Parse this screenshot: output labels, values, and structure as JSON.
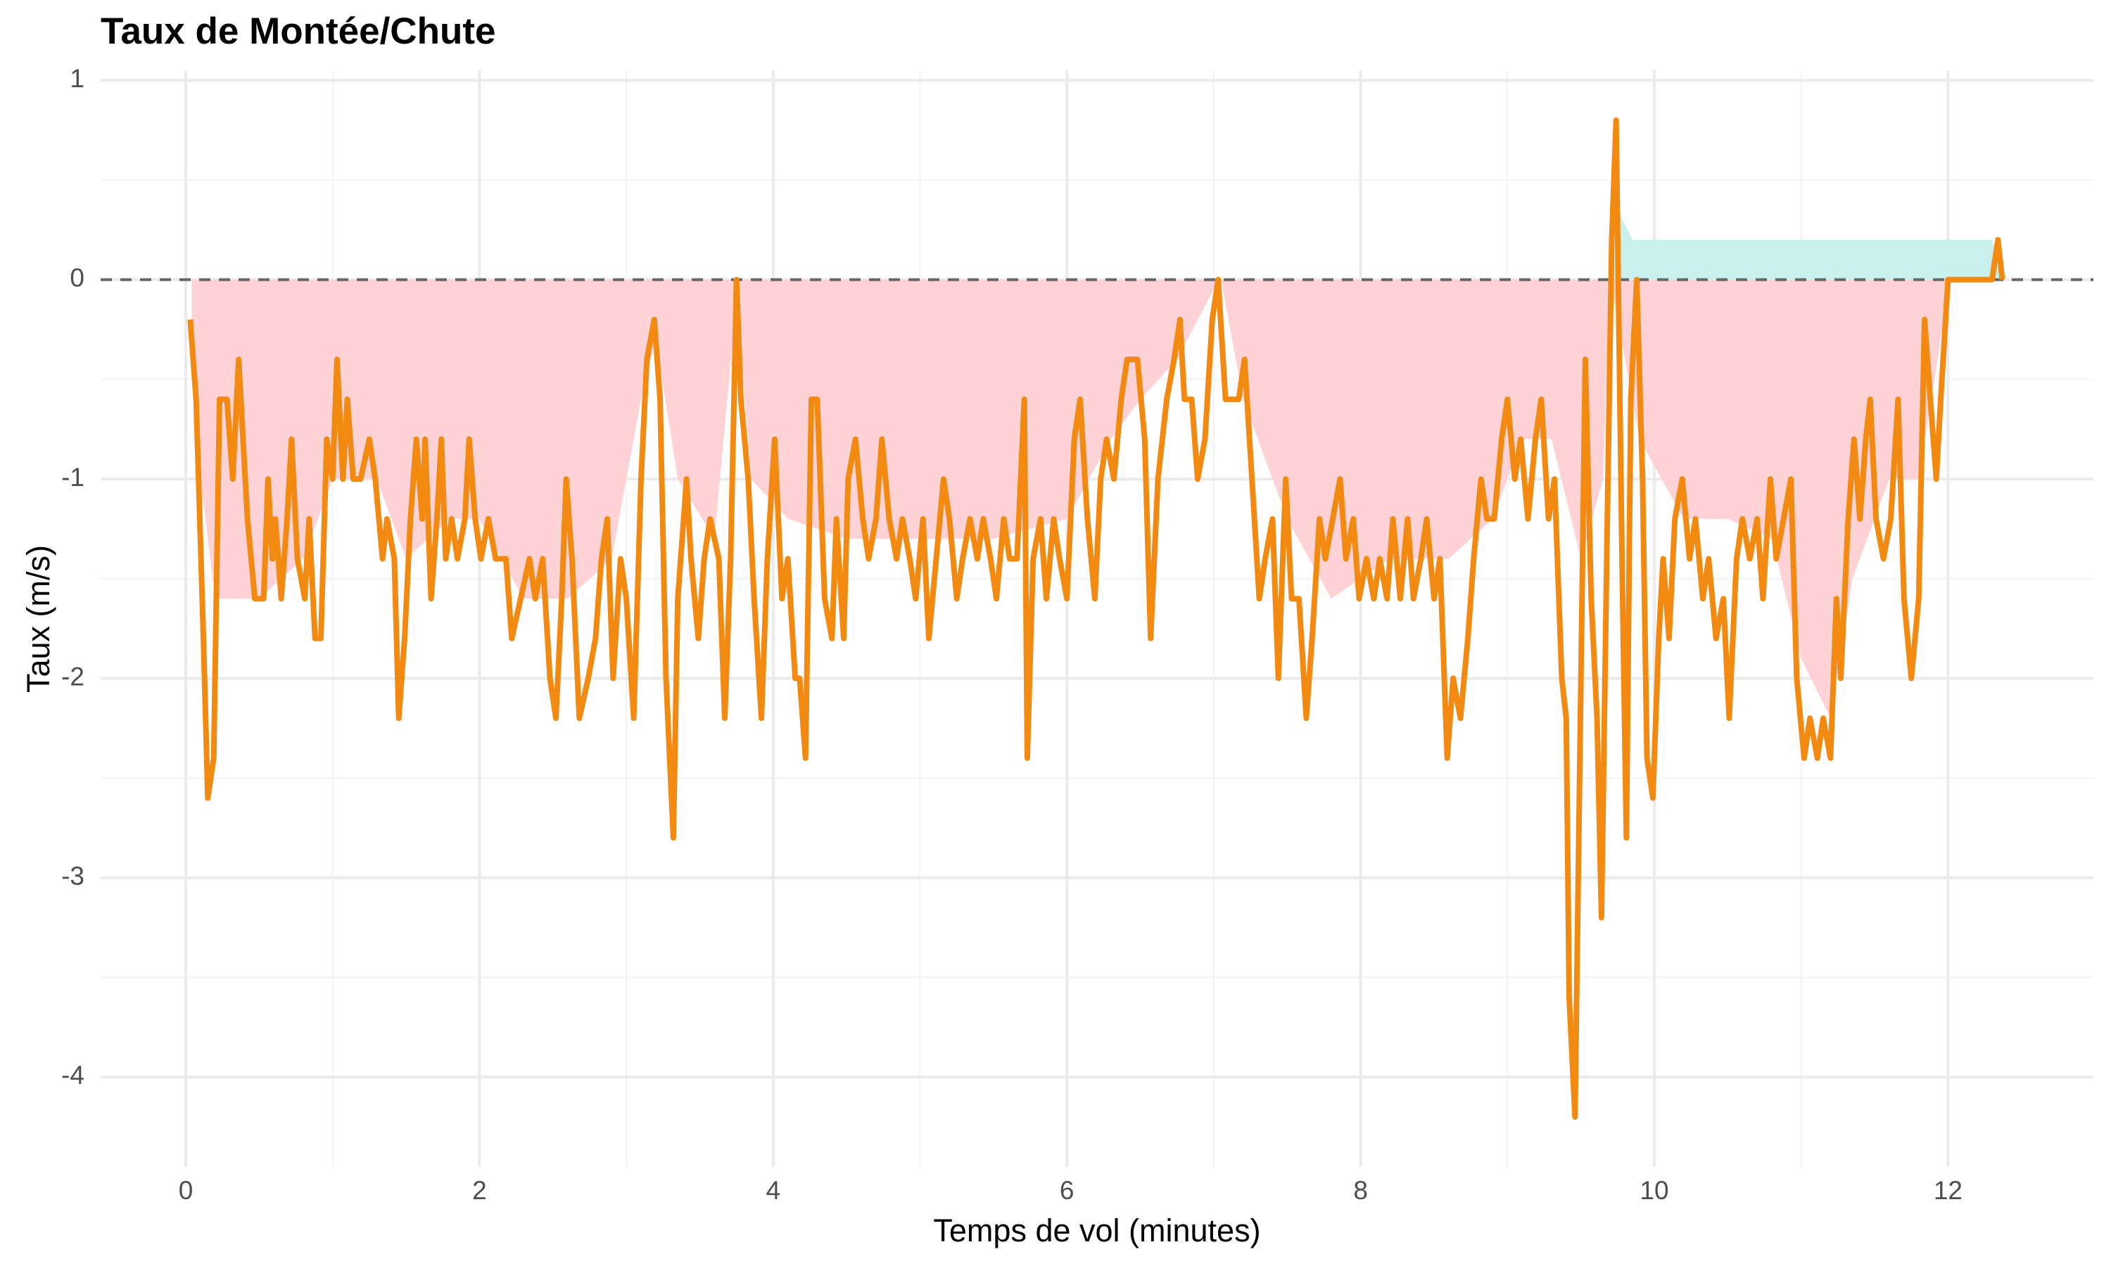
{
  "chart_data": {
    "type": "line",
    "title": "Taux de Montée/Chute",
    "x_label": "Temps de vol (minutes)",
    "y_label": "Taux (m/s)",
    "xlim": [
      -0.58,
      12.99
    ],
    "ylim": [
      -4.45,
      1.05
    ],
    "xticks": [
      0,
      2,
      4,
      6,
      8,
      10,
      12
    ],
    "yticks": [
      1,
      0,
      -1,
      -2,
      -3,
      -4
    ],
    "x_minor_breaks": [
      1,
      3,
      5,
      7,
      9,
      11
    ],
    "y_minor_breaks": [
      0.5,
      -0.5,
      -1.5,
      -2.5,
      -3.5
    ],
    "grid": true,
    "hline": 0,
    "areas": [
      {
        "color": "#ffd3d6",
        "x": [
          0.04,
          0.1,
          0.2,
          0.5,
          0.8,
          1.0,
          1.3,
          1.5,
          1.8,
          2.0,
          2.3,
          2.6,
          2.9,
          3.1,
          3.2,
          3.35,
          3.6,
          3.75,
          3.85,
          4.1,
          4.5,
          5.0,
          5.5,
          6.0,
          6.3,
          6.5,
          6.75,
          7.0,
          7.05,
          7.2,
          7.5,
          7.8,
          8.2,
          8.6,
          8.9,
          9.1,
          9.3,
          9.5,
          9.65,
          9.7,
          9.9,
          10.2,
          10.5,
          10.8,
          11.0,
          11.2,
          11.35,
          11.6,
          11.8,
          11.95,
          12.0
        ],
        "values": [
          -0.2,
          -1.0,
          -1.6,
          -1.6,
          -1.4,
          -1.0,
          -1.0,
          -1.4,
          -1.2,
          -1.2,
          -1.6,
          -1.6,
          -1.4,
          -0.6,
          -0.3,
          -1.0,
          -1.3,
          -0.1,
          -1.0,
          -1.2,
          -1.3,
          -1.3,
          -1.3,
          -1.2,
          -0.8,
          -0.6,
          -0.4,
          -0.05,
          0,
          -0.6,
          -1.2,
          -1.6,
          -1.4,
          -1.4,
          -1.2,
          -0.8,
          -0.8,
          -1.4,
          -1.0,
          0,
          -0.8,
          -1.2,
          -1.2,
          -1.3,
          -1.9,
          -2.2,
          -1.5,
          -1.0,
          -1.0,
          -0.3,
          0
        ]
      },
      {
        "color": "#c8f0ec",
        "x": [
          9.72,
          9.75,
          9.85,
          12.3,
          12.37
        ],
        "values": [
          0,
          0.35,
          0.2,
          0.2,
          0
        ]
      }
    ],
    "series": [
      {
        "color": "#f28a12",
        "x": [
          0.03,
          0.07,
          0.12,
          0.15,
          0.19,
          0.23,
          0.28,
          0.32,
          0.36,
          0.39,
          0.42,
          0.47,
          0.53,
          0.56,
          0.59,
          0.61,
          0.65,
          0.69,
          0.72,
          0.76,
          0.81,
          0.84,
          0.88,
          0.92,
          0.96,
          1.0,
          1.03,
          1.07,
          1.1,
          1.14,
          1.19,
          1.25,
          1.29,
          1.34,
          1.37,
          1.42,
          1.45,
          1.49,
          1.53,
          1.57,
          1.61,
          1.63,
          1.67,
          1.71,
          1.74,
          1.77,
          1.81,
          1.85,
          1.9,
          1.93,
          1.97,
          2.01,
          2.06,
          2.11,
          2.18,
          2.22,
          2.28,
          2.34,
          2.38,
          2.43,
          2.48,
          2.52,
          2.56,
          2.59,
          2.63,
          2.68,
          2.74,
          2.79,
          2.83,
          2.87,
          2.91,
          2.96,
          3.0,
          3.05,
          3.1,
          3.14,
          3.19,
          3.23,
          3.27,
          3.32,
          3.35,
          3.41,
          3.44,
          3.49,
          3.53,
          3.57,
          3.63,
          3.67,
          3.71,
          3.75,
          3.78,
          3.83,
          3.87,
          3.92,
          3.96,
          4.01,
          4.06,
          4.1,
          4.15,
          4.18,
          4.22,
          4.26,
          4.3,
          4.35,
          4.4,
          4.43,
          4.48,
          4.51,
          4.56,
          4.61,
          4.65,
          4.7,
          4.74,
          4.79,
          4.84,
          4.88,
          4.93,
          4.97,
          5.02,
          5.06,
          5.11,
          5.16,
          5.2,
          5.25,
          5.29,
          5.34,
          5.39,
          5.43,
          5.48,
          5.52,
          5.57,
          5.61,
          5.66,
          5.71,
          5.73,
          5.77,
          5.82,
          5.86,
          5.91,
          5.95,
          6.0,
          6.05,
          6.09,
          6.14,
          6.19,
          6.23,
          6.27,
          6.32,
          6.37,
          6.41,
          6.48,
          6.53,
          6.57,
          6.62,
          6.68,
          6.73,
          6.77,
          6.8,
          6.85,
          6.89,
          6.94,
          6.99,
          7.03,
          7.08,
          7.17,
          7.21,
          7.26,
          7.31,
          7.35,
          7.4,
          7.44,
          7.49,
          7.53,
          7.58,
          7.63,
          7.67,
          7.72,
          7.76,
          7.81,
          7.86,
          7.9,
          7.95,
          7.99,
          8.04,
          8.09,
          8.13,
          8.18,
          8.22,
          8.27,
          8.32,
          8.36,
          8.41,
          8.45,
          8.5,
          8.54,
          8.59,
          8.63,
          8.68,
          8.73,
          8.77,
          8.82,
          8.86,
          8.91,
          8.96,
          9.0,
          9.05,
          9.09,
          9.14,
          9.19,
          9.23,
          9.28,
          9.32,
          9.37,
          9.4,
          9.42,
          9.46,
          9.5,
          9.53,
          9.57,
          9.61,
          9.64,
          9.68,
          9.71,
          9.74,
          9.78,
          9.81,
          9.84,
          9.88,
          9.92,
          9.95,
          9.99,
          10.03,
          10.06,
          10.1,
          10.14,
          10.19,
          10.24,
          10.28,
          10.33,
          10.37,
          10.42,
          10.47,
          10.51,
          10.56,
          10.6,
          10.65,
          10.7,
          10.74,
          10.79,
          10.83,
          10.88,
          10.93,
          10.97,
          11.02,
          11.06,
          11.11,
          11.15,
          11.2,
          11.24,
          11.27,
          11.32,
          11.36,
          11.4,
          11.44,
          11.47,
          11.51,
          11.56,
          11.61,
          11.66,
          11.7,
          11.75,
          11.8,
          11.84,
          11.88,
          11.92,
          11.95,
          12.0,
          12.3,
          12.34,
          12.37
        ],
        "values": [
          -0.2,
          -0.6,
          -1.8,
          -2.6,
          -2.4,
          -0.6,
          -0.6,
          -1.0,
          -0.4,
          -0.8,
          -1.2,
          -1.6,
          -1.6,
          -1.0,
          -1.4,
          -1.2,
          -1.6,
          -1.2,
          -0.8,
          -1.4,
          -1.6,
          -1.2,
          -1.8,
          -1.8,
          -0.8,
          -1.0,
          -0.4,
          -1.0,
          -0.6,
          -1.0,
          -1.0,
          -0.8,
          -1.0,
          -1.4,
          -1.2,
          -1.4,
          -2.2,
          -1.8,
          -1.2,
          -0.8,
          -1.2,
          -0.8,
          -1.6,
          -1.2,
          -0.8,
          -1.4,
          -1.2,
          -1.4,
          -1.2,
          -0.8,
          -1.2,
          -1.4,
          -1.2,
          -1.4,
          -1.4,
          -1.8,
          -1.6,
          -1.4,
          -1.6,
          -1.4,
          -2.0,
          -2.2,
          -1.6,
          -1.0,
          -1.4,
          -2.2,
          -2.0,
          -1.8,
          -1.4,
          -1.2,
          -2.0,
          -1.4,
          -1.6,
          -2.2,
          -1.0,
          -0.4,
          -0.2,
          -0.6,
          -2.0,
          -2.8,
          -1.6,
          -1.0,
          -1.4,
          -1.8,
          -1.4,
          -1.2,
          -1.4,
          -2.2,
          -1.4,
          0,
          -0.6,
          -1.0,
          -1.6,
          -2.2,
          -1.4,
          -0.8,
          -1.6,
          -1.4,
          -2.0,
          -2.0,
          -2.4,
          -0.6,
          -0.6,
          -1.6,
          -1.8,
          -1.2,
          -1.8,
          -1.0,
          -0.8,
          -1.2,
          -1.4,
          -1.2,
          -0.8,
          -1.2,
          -1.4,
          -1.2,
          -1.4,
          -1.6,
          -1.2,
          -1.8,
          -1.4,
          -1.0,
          -1.2,
          -1.6,
          -1.4,
          -1.2,
          -1.4,
          -1.2,
          -1.4,
          -1.6,
          -1.2,
          -1.4,
          -1.4,
          -0.6,
          -2.4,
          -1.4,
          -1.2,
          -1.6,
          -1.2,
          -1.4,
          -1.6,
          -0.8,
          -0.6,
          -1.2,
          -1.6,
          -1.0,
          -0.8,
          -1.0,
          -0.6,
          -0.4,
          -0.4,
          -0.8,
          -1.8,
          -1.0,
          -0.6,
          -0.4,
          -0.2,
          -0.6,
          -0.6,
          -1.0,
          -0.8,
          -0.2,
          0,
          -0.6,
          -0.6,
          -0.4,
          -1.0,
          -1.6,
          -1.4,
          -1.2,
          -2.0,
          -1.0,
          -1.6,
          -1.6,
          -2.2,
          -1.8,
          -1.2,
          -1.4,
          -1.2,
          -1.0,
          -1.4,
          -1.2,
          -1.6,
          -1.4,
          -1.6,
          -1.4,
          -1.6,
          -1.2,
          -1.6,
          -1.2,
          -1.6,
          -1.4,
          -1.2,
          -1.6,
          -1.4,
          -2.4,
          -2.0,
          -2.2,
          -1.8,
          -1.4,
          -1.0,
          -1.2,
          -1.2,
          -0.8,
          -0.6,
          -1.0,
          -0.8,
          -1.2,
          -0.8,
          -0.6,
          -1.2,
          -1.0,
          -2.0,
          -2.2,
          -3.6,
          -4.2,
          -2.0,
          -0.4,
          -1.6,
          -2.2,
          -3.2,
          -1.2,
          0.2,
          0.8,
          -1.4,
          -2.8,
          -0.6,
          0,
          -1.0,
          -2.4,
          -2.6,
          -1.8,
          -1.4,
          -1.8,
          -1.2,
          -1.0,
          -1.4,
          -1.2,
          -1.6,
          -1.4,
          -1.8,
          -1.6,
          -2.2,
          -1.4,
          -1.2,
          -1.4,
          -1.2,
          -1.6,
          -1.0,
          -1.4,
          -1.2,
          -1.0,
          -2.0,
          -2.4,
          -2.2,
          -2.4,
          -2.2,
          -2.4,
          -1.6,
          -2.0,
          -1.2,
          -0.8,
          -1.2,
          -0.8,
          -0.6,
          -1.2,
          -1.4,
          -1.2,
          -0.6,
          -1.6,
          -2.0,
          -1.6,
          -0.2,
          -0.6,
          -1.0,
          -0.6,
          0,
          0,
          0.2,
          0
        ]
      }
    ]
  }
}
